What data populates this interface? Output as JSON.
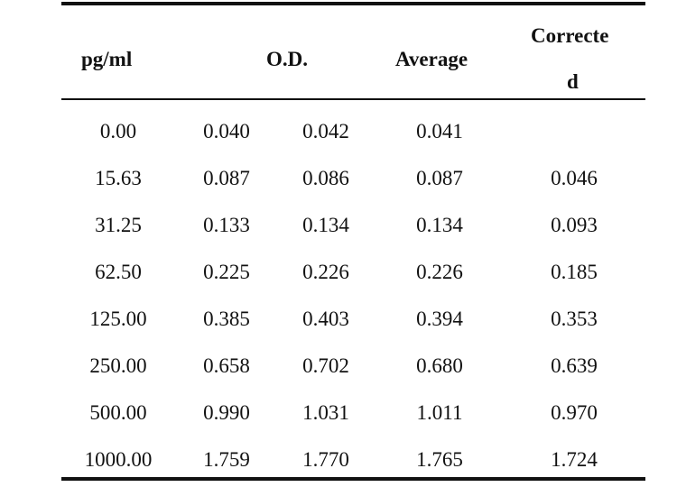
{
  "table": {
    "headers": {
      "pgml": "pg/ml",
      "od": "O.D.",
      "average": "Average",
      "corrected_line1": "Correcte",
      "corrected_line2": "d"
    },
    "rows": [
      {
        "pgml": "0.00",
        "od1": "0.040",
        "od2": "0.042",
        "average": "0.041",
        "corrected": ""
      },
      {
        "pgml": "15.63",
        "od1": "0.087",
        "od2": "0.086",
        "average": "0.087",
        "corrected": "0.046"
      },
      {
        "pgml": "31.25",
        "od1": "0.133",
        "od2": "0.134",
        "average": "0.134",
        "corrected": "0.093"
      },
      {
        "pgml": "62.50",
        "od1": "0.225",
        "od2": "0.226",
        "average": "0.226",
        "corrected": "0.185"
      },
      {
        "pgml": "125.00",
        "od1": "0.385",
        "od2": "0.403",
        "average": "0.394",
        "corrected": "0.353"
      },
      {
        "pgml": "250.00",
        "od1": "0.658",
        "od2": "0.702",
        "average": "0.680",
        "corrected": "0.639"
      },
      {
        "pgml": "500.00",
        "od1": "0.990",
        "od2": "1.031",
        "average": "1.011",
        "corrected": "0.970"
      },
      {
        "pgml": "1000.00",
        "od1": "1.759",
        "od2": "1.770",
        "average": "1.765",
        "corrected": "1.724"
      }
    ]
  }
}
